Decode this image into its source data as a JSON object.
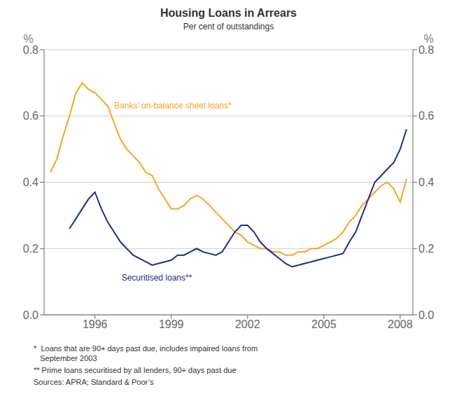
{
  "chart_data": {
    "type": "line",
    "title": "Housing Loans in Arrears",
    "subtitle": "Per cent of outstandings",
    "xlim": [
      1994.0,
      2008.5
    ],
    "xticks": [
      1996,
      1999,
      2002,
      2005,
      2008
    ],
    "ylim": [
      0.0,
      0.8
    ],
    "yticks": [
      {
        "value": 0.0,
        "label": "0.0"
      },
      0.2,
      0.4,
      0.6,
      0.8
    ],
    "y2lim": [
      0.0,
      0.8
    ],
    "y2ticks": [
      {
        "value": 0.0,
        "label": "0.0"
      },
      0.2,
      0.4,
      0.6,
      0.8
    ],
    "ylabel": "%",
    "y2label": "%",
    "grid": true,
    "annotations": [
      {
        "text": "Banks’ on-balance sheet loans*",
        "color": "#F5A623"
      },
      {
        "text": "Securitised loans**",
        "color": "#1F2D8A"
      }
    ],
    "footnotes": [
      "*  Loans that are 90+ days past due, includes impaired loans from\n   September 2003",
      "** Prime loans securitised by all lenders, 90+ days past due",
      "Sources: APRA; Standard & Poor’s"
    ],
    "series": [
      {
        "color": "#F5A623",
        "x": [
          1994.25,
          1994.5,
          1994.75,
          1995.0,
          1995.25,
          1995.5,
          1995.75,
          1996.0,
          1996.25,
          1996.5,
          1996.75,
          1997.0,
          1997.25,
          1997.5,
          1997.75,
          1998.0,
          1998.25,
          1998.5,
          1998.75,
          1999.0,
          1999.25,
          1999.5,
          1999.75,
          2000.0,
          2000.25,
          2000.5,
          2000.75,
          2001.0,
          2001.25,
          2001.5,
          2001.75,
          2002.0,
          2002.25,
          2002.5,
          2002.75,
          2003.0,
          2003.25,
          2003.5,
          2003.75,
          2004.0,
          2004.25,
          2004.5,
          2004.75,
          2005.0,
          2005.25,
          2005.5,
          2005.75,
          2006.0,
          2006.25,
          2006.5,
          2006.75,
          2007.0,
          2007.25,
          2007.5,
          2007.75,
          2008.0,
          2008.25
        ],
        "values": [
          0.43,
          0.47,
          0.54,
          0.6,
          0.67,
          0.7,
          0.68,
          0.67,
          0.65,
          0.63,
          0.58,
          0.53,
          0.5,
          0.48,
          0.46,
          0.43,
          0.42,
          0.38,
          0.35,
          0.32,
          0.32,
          0.33,
          0.35,
          0.36,
          0.35,
          0.33,
          0.31,
          0.29,
          0.27,
          0.25,
          0.24,
          0.22,
          0.21,
          0.2,
          0.2,
          0.19,
          0.19,
          0.18,
          0.18,
          0.19,
          0.19,
          0.2,
          0.2,
          0.21,
          0.22,
          0.23,
          0.25,
          0.28,
          0.3,
          0.33,
          0.35,
          0.37,
          0.39,
          0.4,
          0.38,
          0.34,
          0.41
        ]
      },
      {
        "color": "#1F2D8A",
        "x": [
          1995.0,
          1995.25,
          1995.5,
          1995.75,
          1996.0,
          1996.25,
          1996.5,
          1996.75,
          1997.0,
          1997.25,
          1997.5,
          1997.75,
          1998.0,
          1998.25,
          1998.5,
          1998.75,
          1999.0,
          1999.25,
          1999.5,
          1999.75,
          2000.0,
          2000.25,
          2000.5,
          2000.75,
          2001.0,
          2001.25,
          2001.5,
          2001.75,
          2002.0,
          2002.25,
          2002.5,
          2002.75,
          2003.0,
          2003.25,
          2003.5,
          2003.75,
          2004.0,
          2004.25,
          2004.5,
          2004.75,
          2005.0,
          2005.25,
          2005.5,
          2005.75,
          2006.0,
          2006.25,
          2006.5,
          2006.75,
          2007.0,
          2007.25,
          2007.5,
          2007.75,
          2008.0,
          2008.25
        ],
        "values": [
          0.26,
          0.29,
          0.32,
          0.35,
          0.37,
          0.32,
          0.28,
          0.25,
          0.22,
          0.2,
          0.18,
          0.17,
          0.16,
          0.15,
          0.155,
          0.16,
          0.165,
          0.18,
          0.18,
          0.19,
          0.2,
          0.19,
          0.185,
          0.18,
          0.19,
          0.22,
          0.25,
          0.27,
          0.27,
          0.25,
          0.22,
          0.2,
          0.185,
          0.17,
          0.155,
          0.145,
          0.15,
          0.155,
          0.16,
          0.165,
          0.17,
          0.175,
          0.18,
          0.185,
          0.22,
          0.25,
          0.3,
          0.35,
          0.4,
          0.42,
          0.44,
          0.46,
          0.5,
          0.56
        ]
      }
    ]
  }
}
